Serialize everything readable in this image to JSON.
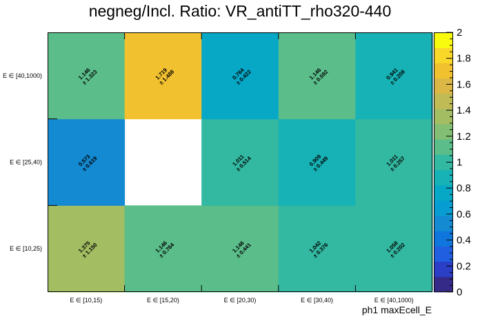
{
  "chart_data": {
    "type": "heatmap",
    "title": "negneg/Incl. Ratio: VR_antiTT_rho320-440",
    "xlabel": "ph1 maxEcell_E",
    "ylabel": "",
    "x_categories": [
      "E ∈ [10,15)",
      "E ∈ [15,20)",
      "E ∈ [20,30)",
      "E ∈ [30,40)",
      "E ∈ [40,1000)"
    ],
    "y_categories": [
      "E ∈ [10,25)",
      "E ∈ [25,40)",
      "E ∈ [40,1000)"
    ],
    "zlim": [
      0,
      2
    ],
    "z_ticks": [
      "0",
      "0.2",
      "0.4",
      "0.6",
      "0.8",
      "1",
      "1.2",
      "1.4",
      "1.6",
      "1.8",
      "2"
    ],
    "cells": [
      {
        "x": 0,
        "y": 0,
        "value": 1.375,
        "label": "1.375",
        "error": "± 1.150"
      },
      {
        "x": 1,
        "y": 0,
        "value": 1.146,
        "label": "1.146",
        "error": "± 0.764"
      },
      {
        "x": 2,
        "y": 0,
        "value": 1.146,
        "label": "1.146",
        "error": "± 0.441"
      },
      {
        "x": 3,
        "y": 0,
        "value": 1.042,
        "label": "1.042",
        "error": "± 0.376"
      },
      {
        "x": 4,
        "y": 0,
        "value": 1.058,
        "label": "1.058",
        "error": "± 0.202"
      },
      {
        "x": 0,
        "y": 1,
        "value": 0.573,
        "label": "0.573",
        "error": "± 0.619"
      },
      {
        "x": 2,
        "y": 1,
        "value": 1.011,
        "label": "1.011",
        "error": "± 0.514"
      },
      {
        "x": 3,
        "y": 1,
        "value": 0.909,
        "label": "0.909",
        "error": "± 0.449"
      },
      {
        "x": 4,
        "y": 1,
        "value": 1.011,
        "label": "1.011",
        "error": "± 0.257"
      },
      {
        "x": 0,
        "y": 2,
        "value": 1.146,
        "label": "1.146",
        "error": "± 1.323"
      },
      {
        "x": 1,
        "y": 2,
        "value": 1.719,
        "label": "1.719",
        "error": "± 1.488"
      },
      {
        "x": 2,
        "y": 2,
        "value": 0.764,
        "label": "0.764",
        "error": "± 0.422"
      },
      {
        "x": 3,
        "y": 2,
        "value": 1.146,
        "label": "1.146",
        "error": "± 0.592"
      },
      {
        "x": 4,
        "y": 2,
        "value": 0.941,
        "label": "0.941",
        "error": "± 0.208"
      }
    ],
    "palette": [
      "#352a87",
      "#2b3ec6",
      "#1f5fe0",
      "#0f76de",
      "#138ad2",
      "#079dd2",
      "#06a8c6",
      "#17b2b5",
      "#33b8a1",
      "#5abd8a",
      "#82bf74",
      "#a3bd62",
      "#c0bb55",
      "#dbb746",
      "#f2c12f",
      "#fad82a",
      "#f9fb0e"
    ]
  }
}
